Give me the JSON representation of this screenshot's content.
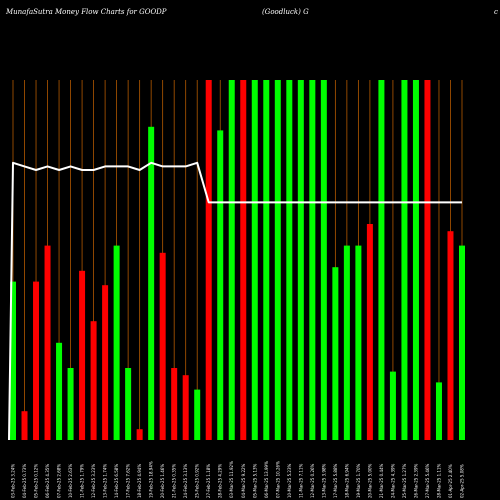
{
  "chart_data": {
    "type": "bar",
    "title": "MunafaSutra  Money Flow  Charts for GOODP",
    "subtitle": "(Goodluck) G",
    "corner_mark": "c",
    "xlabel": "",
    "ylabel": "",
    "ylim": [
      0,
      100
    ],
    "grid": "vertical",
    "legend": "none",
    "colors": {
      "background": "#000000",
      "up": "#00ff00",
      "down": "#ff0000",
      "grid": "#b35900",
      "line": "#ffffff"
    },
    "categories": [
      "03-Feb-25 3.24%",
      "04-Feb-25 0.73%",
      "05-Feb-25 0.12%",
      "06-Feb-25 4.35%",
      "07-Feb-25 2.68%",
      "10-Feb-25 2.63%",
      "11-Feb-25 1.79%",
      "12-Feb-25 3.23%",
      "13-Feb-25 1.74%",
      "14-Feb-25 6.58%",
      "17-Feb-25 7.62%",
      "18-Feb-25 4.94%",
      "19-Feb-25 18.94%",
      "20-Feb-25 1.46%",
      "21-Feb-25 0.35%",
      "24-Feb-25 3.13%",
      "25-Feb-25 0.92%",
      "27-Feb-25 1.18%",
      "28-Feb-25 4.29%",
      "03-Mar-25 11.92%",
      "04-Mar-25 9.22%",
      "05-Mar-25 5.13%",
      "06-Mar-25 13.99%",
      "07-Mar-25 10.26%",
      "10-Mar-25 5.23%",
      "11-Mar-25 7.11%",
      "12-Mar-25 0.26%",
      "13-Mar-25 3.98%",
      "17-Mar-25 5.88%",
      "18-Mar-25 6.94%",
      "19-Mar-25 1.70%",
      "20-Mar-25 5.00%",
      "21-Mar-25 0.44%",
      "24-Mar-25 4.39%",
      "25-Mar-25 1.27%",
      "26-Mar-25 2.39%",
      "27-Mar-25 5.46%",
      "28-Mar-25 1.11%",
      "01-Apr-25 2.40%",
      "02-Apr-25 5.08%"
    ],
    "series": [
      {
        "values": [
          44,
          8,
          44,
          54,
          27,
          20,
          47,
          33,
          43,
          54,
          20,
          3,
          87,
          52,
          20,
          18,
          14,
          100,
          86,
          100,
          100,
          100,
          100,
          100,
          100,
          100,
          100,
          100,
          48,
          54,
          54,
          60,
          100,
          19,
          100,
          100,
          100,
          16,
          58,
          54
        ],
        "directions": [
          "up",
          "down",
          "down",
          "down",
          "up",
          "up",
          "down",
          "down",
          "down",
          "up",
          "up",
          "down",
          "up",
          "down",
          "down",
          "down",
          "up",
          "down",
          "up",
          "up",
          "down",
          "up",
          "up",
          "up",
          "up",
          "up",
          "up",
          "up",
          "up",
          "up",
          "up",
          "down",
          "up",
          "up",
          "up",
          "up",
          "down",
          "up",
          "down",
          "up"
        ]
      }
    ],
    "line": {
      "values": [
        77,
        76,
        75,
        76,
        75,
        76,
        75,
        75,
        76,
        76,
        76,
        75,
        77,
        76,
        76,
        76,
        77,
        66,
        66,
        66,
        66,
        66,
        66,
        66,
        66,
        66,
        66,
        66,
        66,
        66,
        66,
        66,
        66,
        66,
        66,
        66,
        66,
        66,
        66,
        66
      ],
      "start_value": 0
    }
  }
}
